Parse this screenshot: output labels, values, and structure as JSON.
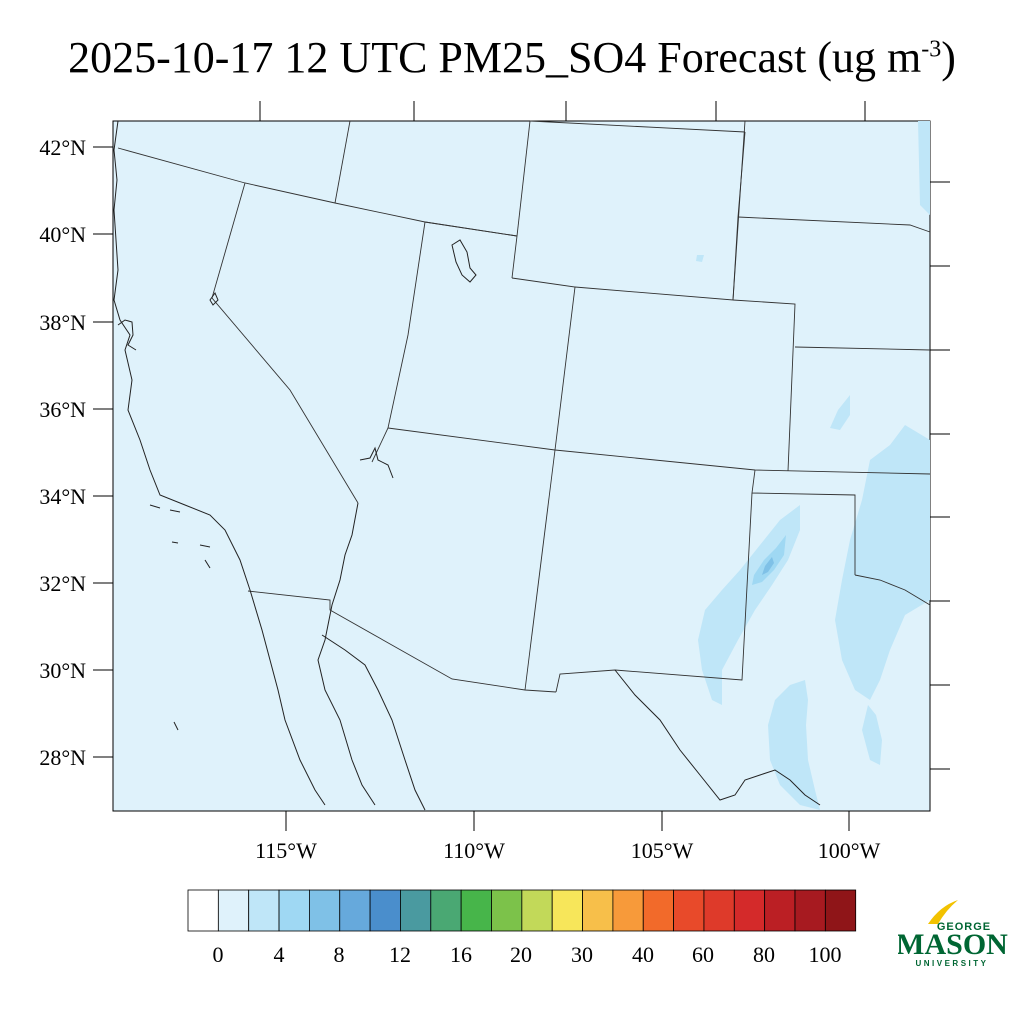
{
  "title": {
    "main": "2025-10-17 12 UTC PM25_SO4 Forecast (ug m",
    "sup": "-3",
    "close": ")"
  },
  "map": {
    "lat_labels": [
      "42°N",
      "40°N",
      "38°N",
      "36°N",
      "34°N",
      "32°N",
      "30°N",
      "28°N"
    ],
    "lon_labels": [
      "115°W",
      "110°W",
      "105°W",
      "100°W"
    ],
    "background_color": "#dff2fb"
  },
  "colorbar": {
    "labels": [
      "0",
      "4",
      "8",
      "12",
      "16",
      "20",
      "30",
      "40",
      "60",
      "80",
      "100"
    ],
    "colors": [
      "#ffffff",
      "#dff2fb",
      "#bfe6f8",
      "#9fd8f3",
      "#7fc1e7",
      "#66a9dc",
      "#4a8ecc",
      "#4a9aa0",
      "#4aa873",
      "#47b54a",
      "#7cc24a",
      "#c2d959",
      "#f7e65a",
      "#f7bf4a",
      "#f79a3a",
      "#f26a2a",
      "#e84a2a",
      "#de3a2a",
      "#d42a2a",
      "#bb1f24",
      "#a71a20",
      "#8f1518"
    ]
  },
  "logo": {
    "top": "GEORGE",
    "main": "MASON",
    "bottom": "UNIVERSITY"
  }
}
